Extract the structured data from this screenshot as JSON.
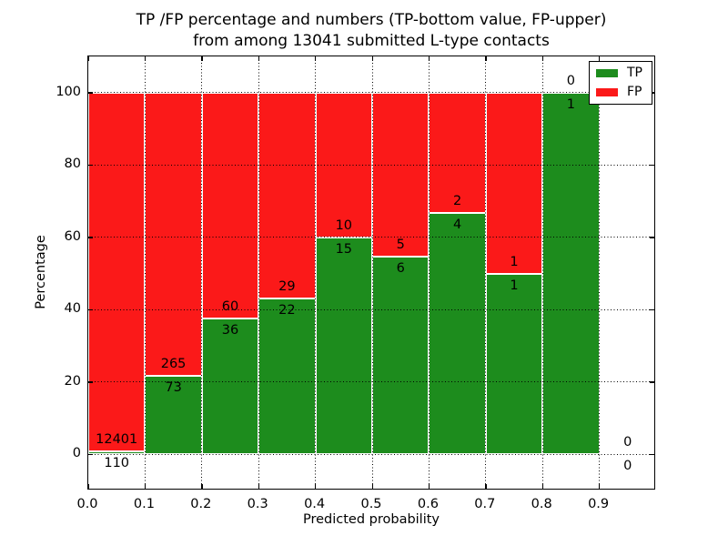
{
  "title": {
    "line1": "TP /FP percentage and numbers (TP-bottom value, FP-upper)",
    "line2": "from among 13041 submitted L-type contacts"
  },
  "axes": {
    "xlabel": "Predicted probability",
    "ylabel": "Percentage",
    "x_tick_labels": [
      "0.0",
      "0.1",
      "0.2",
      "0.3",
      "0.4",
      "0.5",
      "0.6",
      "0.7",
      "0.8",
      "0.9"
    ],
    "y_tick_labels": [
      "0",
      "20",
      "40",
      "60",
      "80",
      "100"
    ],
    "y_tick_values": [
      0,
      20,
      40,
      60,
      80,
      100
    ],
    "xlim": [
      0.0,
      1.0
    ],
    "ylim": [
      -10,
      110
    ],
    "grid": "dotted"
  },
  "legend": {
    "tp_label": "TP",
    "fp_label": "FP",
    "position": "upper right"
  },
  "colors": {
    "tp_green": "#1d8c1d",
    "fp_red": "#fb1919",
    "bar_edge": "#ffffff",
    "grid": "#000000"
  },
  "chart_data": {
    "type": "bar",
    "stacked": true,
    "title": "TP /FP percentage and numbers (TP-bottom value, FP-upper) from among 13041 submitted L-type contacts",
    "xlabel": "Predicted probability",
    "ylabel": "Percentage",
    "total_contacts": 13041,
    "bin_starts": [
      0.0,
      0.1,
      0.2,
      0.3,
      0.4,
      0.5,
      0.6,
      0.7,
      0.8,
      0.9
    ],
    "bin_width": 0.1,
    "series": [
      {
        "name": "TP",
        "color": "#1d8c1d",
        "counts": [
          110,
          73,
          36,
          22,
          15,
          6,
          4,
          1,
          1,
          0
        ],
        "pct": [
          0.88,
          21.6,
          37.5,
          43.14,
          60.0,
          54.55,
          66.67,
          50.0,
          100.0,
          0
        ]
      },
      {
        "name": "FP",
        "color": "#fb1919",
        "counts": [
          12401,
          265,
          60,
          29,
          10,
          5,
          2,
          1,
          0,
          0
        ],
        "pct": [
          99.12,
          78.4,
          62.5,
          56.86,
          40.0,
          45.45,
          33.33,
          50.0,
          0,
          0
        ]
      }
    ],
    "annotation_rule": "FP count printed above TP/FP boundary, TP count printed below boundary"
  }
}
